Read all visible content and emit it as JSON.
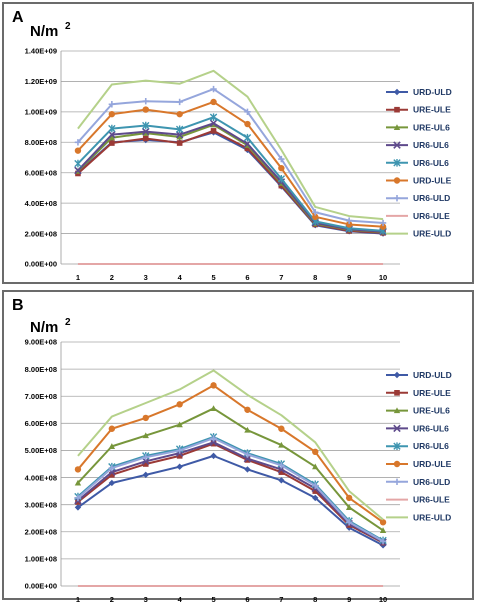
{
  "chart_data": [
    {
      "type": "line",
      "panel_label": "A",
      "unit_label": "N/m",
      "unit_superscript": "2",
      "x": [
        "1",
        "2",
        "3",
        "4",
        "5",
        "6",
        "7",
        "8",
        "9",
        "10"
      ],
      "y_ticks": [
        "0.00E+00",
        "2.00E+08",
        "4.00E+08",
        "6.00E+08",
        "8.00E+08",
        "1.00E+09",
        "1.20E+09",
        "1.40E+09"
      ],
      "ylim": [
        0,
        1400000000
      ],
      "grid": true,
      "legend_position": "right",
      "series": [
        {
          "name": "URD-ULD",
          "color": "#3f5aa6",
          "marker": "diamond",
          "values": [
            600000000,
            800000000,
            815000000,
            800000000,
            865000000,
            750000000,
            510000000,
            255000000,
            215000000,
            200000000
          ]
        },
        {
          "name": "URE-ULE",
          "color": "#9b3a36",
          "marker": "square",
          "values": [
            595000000,
            795000000,
            825000000,
            795000000,
            875000000,
            760000000,
            515000000,
            260000000,
            218000000,
            205000000
          ]
        },
        {
          "name": "URE-UL6",
          "color": "#77963b",
          "marker": "triangle",
          "values": [
            610000000,
            830000000,
            860000000,
            835000000,
            915000000,
            780000000,
            530000000,
            265000000,
            225000000,
            210000000
          ]
        },
        {
          "name": "UR6-UL6",
          "color": "#5e4a8b",
          "marker": "x",
          "values": [
            615000000,
            850000000,
            870000000,
            850000000,
            925000000,
            790000000,
            540000000,
            270000000,
            228000000,
            212000000
          ]
        },
        {
          "name": "UR6-UL6",
          "color": "#3e95b0",
          "marker": "star",
          "values": [
            660000000,
            890000000,
            910000000,
            885000000,
            965000000,
            830000000,
            560000000,
            280000000,
            235000000,
            218000000
          ]
        },
        {
          "name": "URD-ULE",
          "color": "#d8772b",
          "marker": "circle",
          "values": [
            745000000,
            985000000,
            1015000000,
            985000000,
            1065000000,
            920000000,
            630000000,
            310000000,
            260000000,
            245000000
          ]
        },
        {
          "name": "UR6-ULD",
          "color": "#95a6dc",
          "marker": "plus",
          "values": [
            800000000,
            1050000000,
            1070000000,
            1065000000,
            1150000000,
            1000000000,
            690000000,
            340000000,
            285000000,
            270000000
          ]
        },
        {
          "name": "UR6-ULE",
          "color": "#e4a6a6",
          "marker": "none",
          "values": [
            0,
            0,
            0,
            0,
            0,
            0,
            0,
            0,
            0,
            0
          ]
        },
        {
          "name": "URE-ULD",
          "color": "#b5d18a",
          "marker": "none",
          "values": [
            890000000,
            1180000000,
            1205000000,
            1185000000,
            1270000000,
            1100000000,
            750000000,
            375000000,
            315000000,
            295000000
          ]
        }
      ]
    },
    {
      "type": "line",
      "panel_label": "B",
      "unit_label": "N/m",
      "unit_superscript": "2",
      "x": [
        "1",
        "2",
        "3",
        "4",
        "5",
        "6",
        "7",
        "8",
        "9",
        "10"
      ],
      "y_ticks": [
        "0.00E+00",
        "1.00E+08",
        "2.00E+08",
        "3.00E+08",
        "4.00E+08",
        "5.00E+08",
        "6.00E+08",
        "7.00E+08",
        "8.00E+08",
        "9.00E+08"
      ],
      "ylim": [
        0,
        900000000
      ],
      "grid": true,
      "legend_position": "right",
      "series": [
        {
          "name": "URD-ULD",
          "color": "#3f5aa6",
          "marker": "diamond",
          "values": [
            290000000,
            380000000,
            410000000,
            440000000,
            480000000,
            430000000,
            390000000,
            325000000,
            215000000,
            150000000
          ]
        },
        {
          "name": "URE-ULE",
          "color": "#9b3a36",
          "marker": "square",
          "values": [
            310000000,
            410000000,
            450000000,
            480000000,
            525000000,
            465000000,
            420000000,
            350000000,
            225000000,
            160000000
          ]
        },
        {
          "name": "URE-UL6",
          "color": "#77963b",
          "marker": "triangle",
          "values": [
            380000000,
            515000000,
            555000000,
            595000000,
            655000000,
            575000000,
            520000000,
            440000000,
            290000000,
            205000000
          ]
        },
        {
          "name": "UR6-UL6",
          "color": "#5e4a8b",
          "marker": "x",
          "values": [
            315000000,
            420000000,
            460000000,
            490000000,
            530000000,
            470000000,
            430000000,
            360000000,
            230000000,
            162000000
          ]
        },
        {
          "name": "UR6-UL6",
          "color": "#3e95b0",
          "marker": "star",
          "values": [
            330000000,
            440000000,
            480000000,
            505000000,
            550000000,
            490000000,
            450000000,
            375000000,
            240000000,
            168000000
          ]
        },
        {
          "name": "URD-ULE",
          "color": "#d8772b",
          "marker": "circle",
          "values": [
            430000000,
            580000000,
            620000000,
            670000000,
            740000000,
            650000000,
            580000000,
            495000000,
            325000000,
            235000000
          ]
        },
        {
          "name": "UR6-ULD",
          "color": "#95a6dc",
          "marker": "plus",
          "values": [
            325000000,
            435000000,
            475000000,
            500000000,
            545000000,
            485000000,
            445000000,
            370000000,
            235000000,
            165000000
          ]
        },
        {
          "name": "UR6-ULE",
          "color": "#e4a6a6",
          "marker": "none",
          "values": [
            0,
            0,
            0,
            0,
            0,
            0,
            0,
            0,
            0,
            0
          ]
        },
        {
          "name": "URE-ULD",
          "color": "#b5d18a",
          "marker": "none",
          "values": [
            480000000,
            625000000,
            675000000,
            725000000,
            795000000,
            705000000,
            630000000,
            530000000,
            350000000,
            245000000
          ]
        }
      ]
    }
  ]
}
